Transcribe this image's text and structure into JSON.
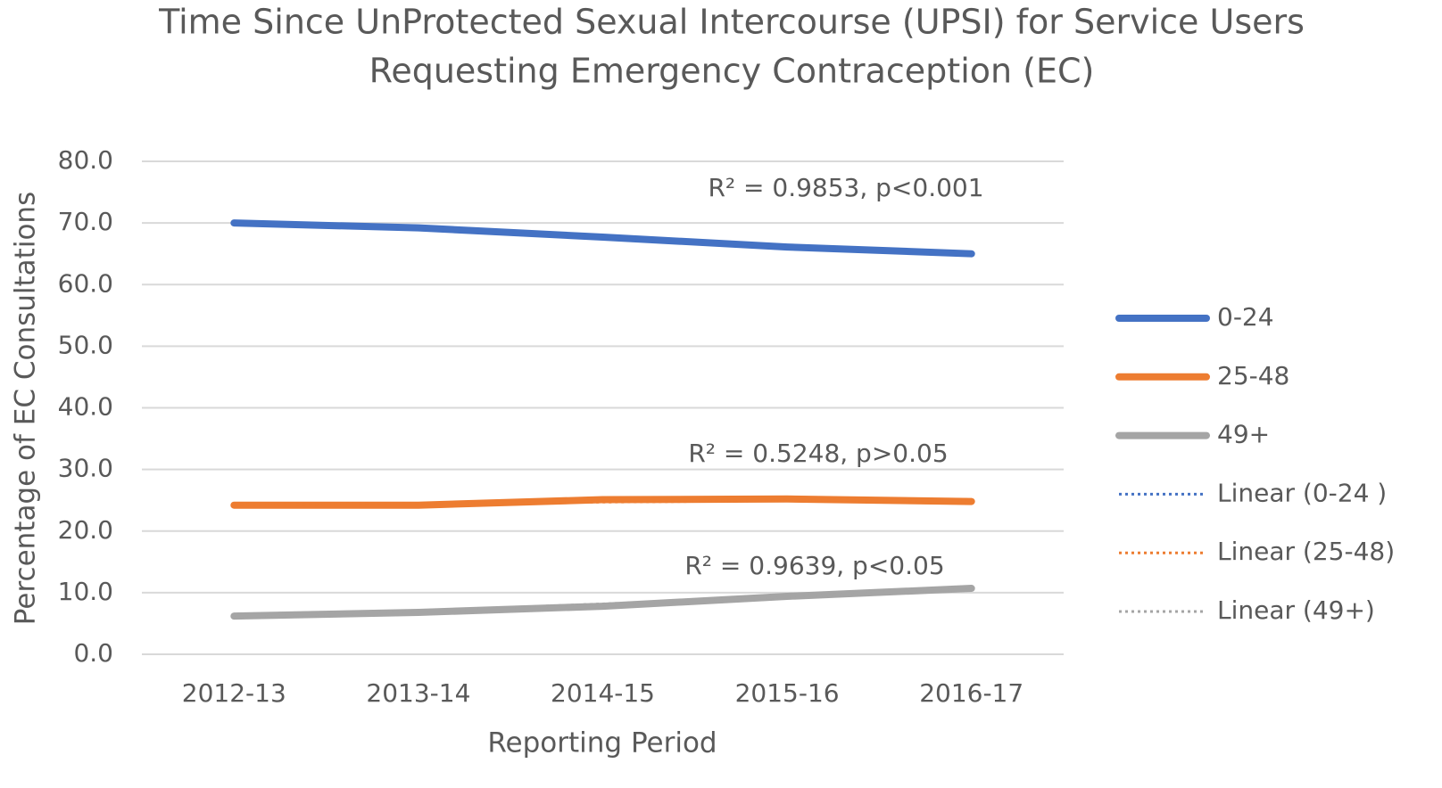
{
  "chart_data": {
    "type": "line",
    "title": [
      "Time Since UnProtected Sexual Intercourse (UPSI) for Service Users",
      "Requesting Emergency Contraception (EC)"
    ],
    "x_label": "Reporting Period",
    "y_label": "Percentage of EC Consultations",
    "categories": [
      "2012-13",
      "2013-14",
      "2014-15",
      "2015-16",
      "2016-17"
    ],
    "series": [
      {
        "name": "0-24",
        "color": "#4472c4",
        "values": [
          70.0,
          69.2,
          67.7,
          66.1,
          65.0
        ],
        "trendline": {
          "type": "linear",
          "name": "Linear (0-24 )"
        }
      },
      {
        "name": "25-48",
        "color": "#ed7d31",
        "values": [
          24.2,
          24.2,
          25.1,
          25.2,
          24.8
        ],
        "trendline": {
          "type": "linear",
          "name": "Linear (25-48)"
        }
      },
      {
        "name": "49+",
        "color": "#a5a5a5",
        "values": [
          6.2,
          6.8,
          7.8,
          9.4,
          10.7
        ],
        "trendline": {
          "type": "linear",
          "name": "Linear (49+)"
        }
      }
    ],
    "annotations": [
      "R² = 0.9853, p<0.001",
      "R² = 0.5248, p>0.05",
      "R² = 0.9639, p<0.05"
    ],
    "ylim": [
      0,
      80
    ],
    "yticks": [
      {
        "value": 0,
        "label": "0.0"
      },
      {
        "value": 10,
        "label": "10.0"
      },
      {
        "value": 20,
        "label": "20.0"
      },
      {
        "value": 30,
        "label": "30.0"
      },
      {
        "value": 40,
        "label": "40.0"
      },
      {
        "value": 50,
        "label": "50.0"
      },
      {
        "value": 60,
        "label": "60.0"
      },
      {
        "value": 70,
        "label": "70.0"
      },
      {
        "value": 80,
        "label": "80.0"
      }
    ],
    "grid": true,
    "legend": "right"
  }
}
